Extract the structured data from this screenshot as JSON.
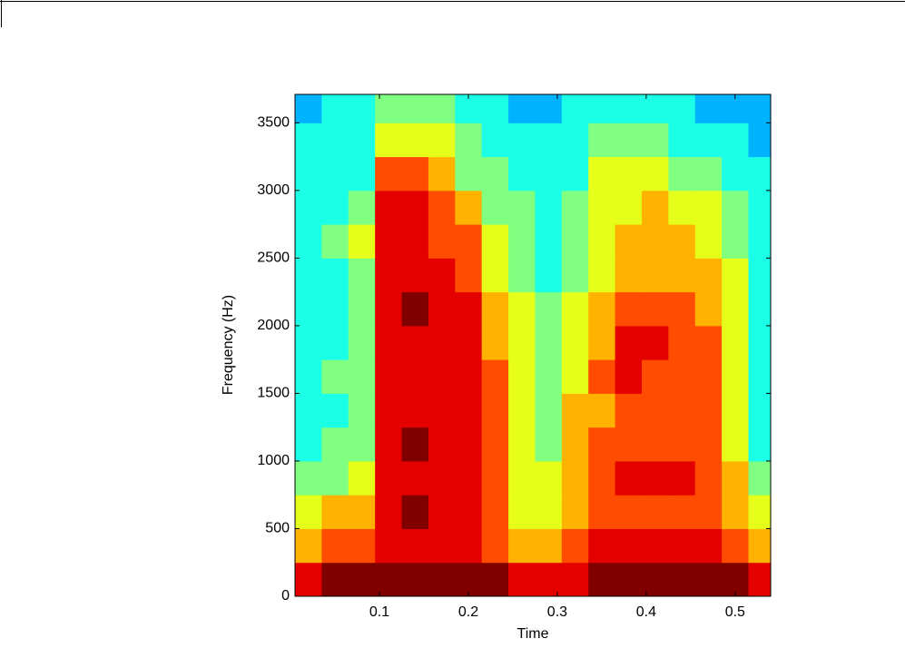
{
  "chart_data": {
    "type": "heatmap",
    "xlabel": "Time",
    "ylabel": "Frequency (Hz)",
    "colormap": "jet",
    "zlim": [
      0,
      10
    ],
    "xbins": [
      0.005,
      0.035,
      0.065,
      0.095,
      0.125,
      0.155,
      0.185,
      0.215,
      0.245,
      0.275,
      0.305,
      0.335,
      0.365,
      0.395,
      0.425,
      0.455,
      0.485,
      0.515,
      0.545
    ],
    "ybins": [
      0,
      250,
      500,
      750,
      1000,
      1250,
      1500,
      1750,
      2000,
      2250,
      2500,
      2750,
      3000,
      3250,
      3500,
      3710
    ],
    "values": [
      [
        9,
        10,
        10,
        10,
        10,
        10,
        10,
        10,
        9,
        9,
        9,
        10,
        10,
        10,
        10,
        10,
        10,
        9
      ],
      [
        7,
        8,
        8,
        9,
        9,
        9,
        9,
        8,
        7,
        7,
        8,
        9,
        9,
        9,
        9,
        9,
        8,
        7
      ],
      [
        6,
        7,
        7,
        9,
        10,
        9,
        9,
        8,
        6,
        6,
        7,
        8,
        8,
        8,
        8,
        8,
        7,
        6
      ],
      [
        5,
        5,
        6,
        9,
        9,
        9,
        9,
        8,
        6,
        6,
        7,
        8,
        9,
        9,
        9,
        8,
        7,
        5
      ],
      [
        4,
        5,
        5,
        9,
        10,
        9,
        9,
        8,
        6,
        5,
        7,
        8,
        8,
        8,
        8,
        8,
        6,
        4
      ],
      [
        4,
        4,
        5,
        9,
        9,
        9,
        9,
        8,
        6,
        5,
        7,
        7,
        8,
        8,
        8,
        8,
        6,
        4
      ],
      [
        4,
        5,
        5,
        9,
        9,
        9,
        9,
        8,
        6,
        5,
        6,
        8,
        9,
        8,
        8,
        8,
        6,
        4
      ],
      [
        4,
        4,
        5,
        9,
        9,
        9,
        9,
        7,
        6,
        5,
        6,
        7,
        9,
        9,
        8,
        8,
        6,
        4
      ],
      [
        4,
        4,
        5,
        9,
        10,
        9,
        9,
        7,
        6,
        5,
        6,
        7,
        8,
        8,
        8,
        7,
        6,
        4
      ],
      [
        4,
        4,
        5,
        9,
        9,
        9,
        8,
        6,
        5,
        4,
        5,
        6,
        7,
        7,
        7,
        7,
        6,
        4
      ],
      [
        4,
        5,
        6,
        9,
        9,
        8,
        8,
        6,
        5,
        4,
        5,
        6,
        7,
        7,
        7,
        6,
        5,
        4
      ],
      [
        4,
        4,
        5,
        9,
        9,
        8,
        7,
        5,
        5,
        4,
        5,
        6,
        6,
        7,
        6,
        6,
        5,
        4
      ],
      [
        4,
        4,
        4,
        8,
        8,
        7,
        5,
        5,
        4,
        4,
        4,
        6,
        6,
        6,
        5,
        5,
        4,
        4
      ],
      [
        4,
        4,
        4,
        6,
        6,
        6,
        5,
        4,
        4,
        4,
        4,
        5,
        5,
        5,
        4,
        4,
        4,
        3
      ],
      [
        3,
        4,
        4,
        5,
        5,
        5,
        4,
        4,
        3,
        3,
        4,
        4,
        4,
        4,
        4,
        3,
        3,
        3
      ]
    ],
    "xlim": [
      0.005,
      0.54
    ],
    "ylim": [
      0,
      3710
    ],
    "xticks": [
      0.1,
      0.2,
      0.3,
      0.4,
      0.5
    ],
    "yticks": [
      0,
      500,
      1000,
      1500,
      2000,
      2500,
      3000,
      3500
    ]
  }
}
